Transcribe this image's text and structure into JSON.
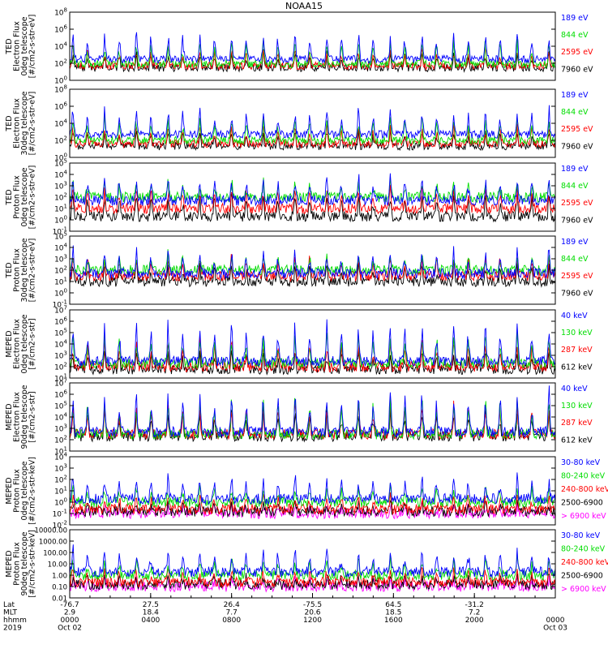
{
  "figure": {
    "title": "NOAA15"
  },
  "colors": {
    "black": "#000000",
    "red": "#ff0000",
    "green": "#00dd00",
    "blue": "#0000ff",
    "magenta": "#ff00ff"
  },
  "chart_data": [
    {
      "type": "line",
      "ylabel": [
        "TED",
        "Electron Flux",
        "0deg telescope",
        "[#/cm2-s-str-eV]"
      ],
      "log": true,
      "ytick_labels": [
        "10^0",
        "10^2",
        "10^4",
        "10^6",
        "10^8"
      ],
      "ylim": [
        1,
        100000000
      ],
      "series": [
        {
          "name": "7960 eV",
          "color": "black",
          "base": 30,
          "peak": 3000
        },
        {
          "name": "2595 eV",
          "color": "red",
          "base": 50,
          "peak": 10000
        },
        {
          "name": "844 eV",
          "color": "green",
          "base": 80,
          "peak": 100000
        },
        {
          "name": "189 eV",
          "color": "blue",
          "base": 300,
          "peak": 1000000
        }
      ]
    },
    {
      "type": "line",
      "ylabel": [
        "TED",
        "Electron Flux",
        "30deg telescope",
        "[#/cm2-s-str-eV]"
      ],
      "log": true,
      "ytick_labels": [
        "10^0",
        "10^2",
        "10^4",
        "10^6",
        "10^8"
      ],
      "ylim": [
        1,
        100000000
      ],
      "series": [
        {
          "name": "7960 eV",
          "color": "black",
          "base": 20,
          "peak": 3000
        },
        {
          "name": "2595 eV",
          "color": "red",
          "base": 40,
          "peak": 10000
        },
        {
          "name": "844 eV",
          "color": "green",
          "base": 100,
          "peak": 100000
        },
        {
          "name": "189 eV",
          "color": "blue",
          "base": 500,
          "peak": 1000000
        }
      ]
    },
    {
      "type": "line",
      "ylabel": [
        "TED",
        "Proton Flux",
        "0deg telescope",
        "[#/cm2-s-str-eV]"
      ],
      "log": true,
      "ytick_labels": [
        "10^-1",
        "10^0",
        "10^1",
        "10^2",
        "10^3",
        "10^4",
        "10^5"
      ],
      "ylim": [
        0.1,
        100000
      ],
      "series": [
        {
          "name": "7960 eV",
          "color": "black",
          "base": 2,
          "peak": 300
        },
        {
          "name": "2595 eV",
          "color": "red",
          "base": 10,
          "peak": 1000
        },
        {
          "name": "844 eV",
          "color": "green",
          "base": 100,
          "peak": 3000
        },
        {
          "name": "189 eV",
          "color": "blue",
          "base": 50,
          "peak": 10000
        }
      ]
    },
    {
      "type": "line",
      "ylabel": [
        "TED",
        "Proton Flux",
        "30deg telescope",
        "[#/cm2-s-str-eV]"
      ],
      "log": true,
      "ytick_labels": [
        "10^-1",
        "10^0",
        "10^1",
        "10^2",
        "10^3",
        "10^4",
        "10^5"
      ],
      "ylim": [
        0.1,
        100000
      ],
      "series": [
        {
          "name": "7960 eV",
          "color": "black",
          "base": 10,
          "peak": 500
        },
        {
          "name": "2595 eV",
          "color": "red",
          "base": 30,
          "peak": 3000
        },
        {
          "name": "844 eV",
          "color": "green",
          "base": 100,
          "peak": 3000
        },
        {
          "name": "189 eV",
          "color": "blue",
          "base": 50,
          "peak": 10000
        }
      ]
    },
    {
      "type": "line",
      "ylabel": [
        "MEPED",
        "Electron Flux",
        "0deg telescope",
        "[#/cm2-s-str]"
      ],
      "log": true,
      "ytick_labels": [
        "10^1",
        "10^2",
        "10^3",
        "10^4",
        "10^5",
        "10^6",
        "10^7"
      ],
      "ylim": [
        10,
        10000000
      ],
      "series": [
        {
          "name": "612 keV",
          "color": "black",
          "base": 60,
          "peak": 2000
        },
        {
          "name": "287 keV",
          "color": "red",
          "base": 100,
          "peak": 30000
        },
        {
          "name": "130 keV",
          "color": "green",
          "base": 200,
          "peak": 100000
        },
        {
          "name": "40 keV",
          "color": "blue",
          "base": 300,
          "peak": 2000000
        }
      ]
    },
    {
      "type": "line",
      "ylabel": [
        "MEPED",
        "Electron Flux",
        "90deg telescope",
        "[#/cm2-s-str]"
      ],
      "log": true,
      "ytick_labels": [
        "10^1",
        "10^2",
        "10^3",
        "10^4",
        "10^5",
        "10^6",
        "10^7"
      ],
      "ylim": [
        10,
        10000000
      ],
      "series": [
        {
          "name": "612 keV",
          "color": "black",
          "base": 200,
          "peak": 100000
        },
        {
          "name": "287 keV",
          "color": "red",
          "base": 300,
          "peak": 300000
        },
        {
          "name": "130 keV",
          "color": "green",
          "base": 300,
          "peak": 1000000
        },
        {
          "name": "40 keV",
          "color": "blue",
          "base": 500,
          "peak": 5000000
        }
      ]
    },
    {
      "type": "line",
      "ylabel": [
        "MEPED",
        "Proton Flux",
        "0deg telescope",
        "[#/cm2-s-str-keV]"
      ],
      "log": true,
      "ytick_labels": [
        "10^-2",
        "10^-1",
        "10^0",
        "10^1",
        "10^2",
        "10^3",
        "10^4"
      ],
      "ylim": [
        0.01,
        10000
      ],
      "series": [
        {
          "name": "> 6900 keV",
          "color": "magenta",
          "base": 0.1,
          "peak": 0.6
        },
        {
          "name": "2500-6900",
          "color": "black",
          "base": 0.15,
          "peak": 1
        },
        {
          "name": "240-800 keV",
          "color": "red",
          "base": 0.25,
          "peak": 5
        },
        {
          "name": "80-240 keV",
          "color": "green",
          "base": 1,
          "peak": 30
        },
        {
          "name": "30-80 keV",
          "color": "blue",
          "base": 2,
          "peak": 300
        }
      ]
    },
    {
      "type": "line",
      "ylabel": [
        "MEPED",
        "Proton Flux",
        "90deg telescope",
        "[#/cm2-s-str-keV]"
      ],
      "log": true,
      "ytick_labels": [
        "0.01",
        "0.10",
        "1.00",
        "10.00",
        "100.00",
        "1000.00",
        "10000.00"
      ],
      "ylim": [
        0.01,
        10000
      ],
      "series": [
        {
          "name": "> 6900 keV",
          "color": "magenta",
          "base": 0.1,
          "peak": 0.6
        },
        {
          "name": "2500-6900",
          "color": "black",
          "base": 0.15,
          "peak": 1
        },
        {
          "name": "240-800 keV",
          "color": "red",
          "base": 0.25,
          "peak": 5
        },
        {
          "name": "80-240 keV",
          "color": "green",
          "base": 1,
          "peak": 30
        },
        {
          "name": "30-80 keV",
          "color": "blue",
          "base": 2,
          "peak": 300
        }
      ]
    }
  ],
  "xaxis": {
    "row_labels": [
      "Lat",
      "MLT",
      "hhmm",
      "2019"
    ],
    "columns": [
      {
        "values": [
          "-76.7",
          "2.9",
          "0000",
          "Oct 02"
        ]
      },
      {
        "values": [
          "27.5",
          "18.4",
          "0400",
          ""
        ]
      },
      {
        "values": [
          "26.4",
          "7.7",
          "0800",
          ""
        ]
      },
      {
        "values": [
          "-75.5",
          "20.6",
          "1200",
          ""
        ]
      },
      {
        "values": [
          "64.5",
          "18.5",
          "1600",
          ""
        ]
      },
      {
        "values": [
          "-31.2",
          "7.2",
          "2000",
          ""
        ]
      },
      {
        "values": [
          "",
          "",
          "0000",
          "Oct 03"
        ]
      }
    ]
  }
}
